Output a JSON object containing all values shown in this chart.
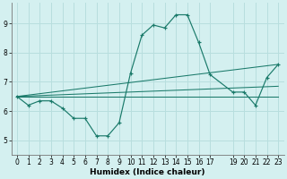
{
  "title": "",
  "xlabel": "Humidex (Indice chaleur)",
  "background_color": "#d4f0f0",
  "grid_color": "#b8dede",
  "line_color": "#1a7a6a",
  "xlim": [
    -0.5,
    23.5
  ],
  "ylim": [
    4.5,
    9.7
  ],
  "yticks": [
    5,
    6,
    7,
    8,
    9
  ],
  "xticks": [
    0,
    1,
    2,
    3,
    4,
    5,
    6,
    7,
    8,
    9,
    10,
    11,
    12,
    13,
    14,
    15,
    16,
    17,
    19,
    20,
    21,
    22,
    23
  ],
  "main_x": [
    0,
    1,
    2,
    3,
    4,
    5,
    6,
    7,
    8,
    9,
    10,
    11,
    12,
    13,
    14,
    15,
    16,
    17,
    19,
    20,
    21,
    22,
    23
  ],
  "main_y": [
    6.5,
    6.2,
    6.35,
    6.35,
    6.1,
    5.75,
    5.75,
    5.15,
    5.15,
    5.6,
    7.3,
    8.6,
    8.95,
    8.85,
    9.3,
    9.3,
    8.35,
    7.25,
    6.65,
    6.65,
    6.2,
    7.15,
    7.6
  ],
  "ref_lines": [
    {
      "x": [
        0,
        23
      ],
      "y": [
        6.5,
        6.5
      ]
    },
    {
      "x": [
        0,
        23
      ],
      "y": [
        6.5,
        7.6
      ]
    },
    {
      "x": [
        0,
        23
      ],
      "y": [
        6.5,
        6.85
      ]
    }
  ],
  "xlabel_fontsize": 6.5,
  "tick_fontsize": 5.5
}
